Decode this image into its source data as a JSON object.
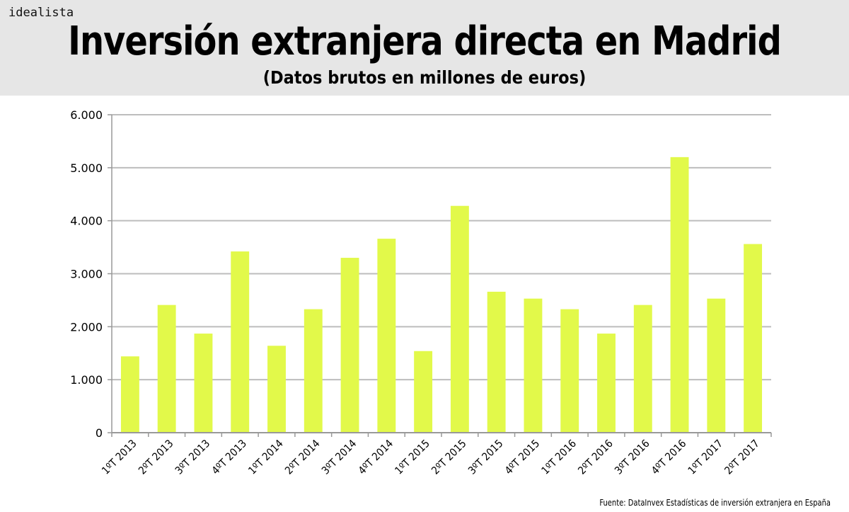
{
  "header": {
    "logo": "idealista",
    "title": "Inversión extranjera directa en Madrid",
    "subtitle": "(Datos brutos en millones de euros)"
  },
  "source": "Fuente: DataInvex Estadísticas de inversión extranjera en España",
  "chart_data": {
    "type": "bar",
    "title": "Inversión extranjera directa en Madrid",
    "subtitle": "(Datos brutos en millones de euros)",
    "categories": [
      "1ºT 2013",
      "2ºT 2013",
      "3ºT 2013",
      "4ºT 2013",
      "1ºT 2014",
      "2ºT 2014",
      "3ºT 2014",
      "4ºT 2014",
      "1ºT 2015",
      "2ºT 2015",
      "3ºT 2015",
      "4ºT 2015",
      "1ºT 2016",
      "2ºT 2016",
      "3ºT 2016",
      "4ºT 2016",
      "1ºT 2017",
      "2ºT 2017"
    ],
    "values": [
      1440,
      2410,
      1870,
      3420,
      1640,
      2330,
      3300,
      3660,
      1540,
      4280,
      2660,
      2530,
      2330,
      1870,
      2410,
      5200,
      2530,
      3560
    ],
    "ylim": [
      0,
      6000
    ],
    "yticks": [
      0,
      1000,
      2000,
      3000,
      4000,
      5000,
      6000
    ],
    "ytick_labels": [
      "0",
      "1.000",
      "2.000",
      "3.000",
      "4.000",
      "5.000",
      "6.000"
    ],
    "grid": true,
    "bar_color": "#e2f94a",
    "xlabel": "",
    "ylabel": ""
  }
}
